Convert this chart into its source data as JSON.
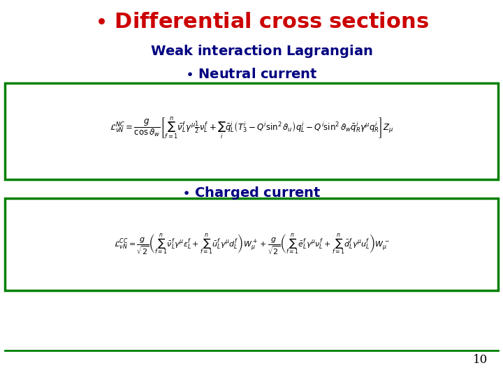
{
  "title_color": "#cc0000",
  "subtitle_color": "#000080",
  "bullet_color": "#000080",
  "formula_color": "#000000",
  "box_color": "#008000",
  "bg_color": "#ffffff",
  "page_number": "10",
  "line_color": "#008000"
}
